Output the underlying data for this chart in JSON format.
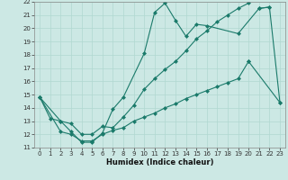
{
  "xlabel": "Humidex (Indice chaleur)",
  "xlim": [
    -0.5,
    23.5
  ],
  "ylim": [
    11,
    22
  ],
  "xticks": [
    0,
    1,
    2,
    3,
    4,
    5,
    6,
    7,
    8,
    9,
    10,
    11,
    12,
    13,
    14,
    15,
    16,
    17,
    18,
    19,
    20,
    21,
    22,
    23
  ],
  "yticks": [
    11,
    12,
    13,
    14,
    15,
    16,
    17,
    18,
    19,
    20,
    21,
    22
  ],
  "background_color": "#cce8e4",
  "grid_color": "#b0d8d0",
  "line_color": "#1a7a6a",
  "marker": "D",
  "markersize": 2.5,
  "linewidth": 0.8,
  "line1_x": [
    0,
    1,
    2,
    3,
    4,
    5,
    6,
    7,
    8,
    10,
    11,
    12,
    13,
    14,
    15,
    16,
    19,
    21,
    22
  ],
  "line1_y": [
    14.8,
    13.2,
    13.0,
    12.2,
    11.4,
    11.4,
    12.1,
    13.9,
    14.8,
    18.1,
    21.2,
    21.9,
    20.6,
    19.4,
    20.3,
    20.2,
    19.6,
    21.5,
    21.6
  ],
  "line2_x": [
    21,
    22,
    23
  ],
  "line2_y": [
    21.5,
    21.6,
    14.4
  ],
  "line3_x": [
    0,
    2,
    3,
    4,
    5,
    6,
    7,
    8,
    9,
    10,
    11,
    12,
    13,
    14,
    15,
    16,
    17,
    18,
    19,
    20
  ],
  "line3_y": [
    14.8,
    13.0,
    12.8,
    12.0,
    12.0,
    12.6,
    12.5,
    13.3,
    14.2,
    15.4,
    16.2,
    16.9,
    17.5,
    18.3,
    19.2,
    19.8,
    20.5,
    21.0,
    21.5,
    21.9
  ],
  "line4_x": [
    0,
    2,
    3,
    4,
    5,
    6,
    7,
    8,
    9,
    10,
    11,
    12,
    13,
    14,
    15,
    16,
    17,
    18,
    19,
    20,
    21,
    22,
    23
  ],
  "line4_y": [
    14.8,
    12.2,
    12.0,
    11.5,
    11.5,
    12.0,
    12.3,
    12.5,
    13.0,
    13.3,
    13.6,
    14.0,
    14.3,
    14.7,
    15.0,
    15.3,
    15.6,
    15.9,
    16.2,
    17.5,
    null,
    null,
    14.4
  ]
}
